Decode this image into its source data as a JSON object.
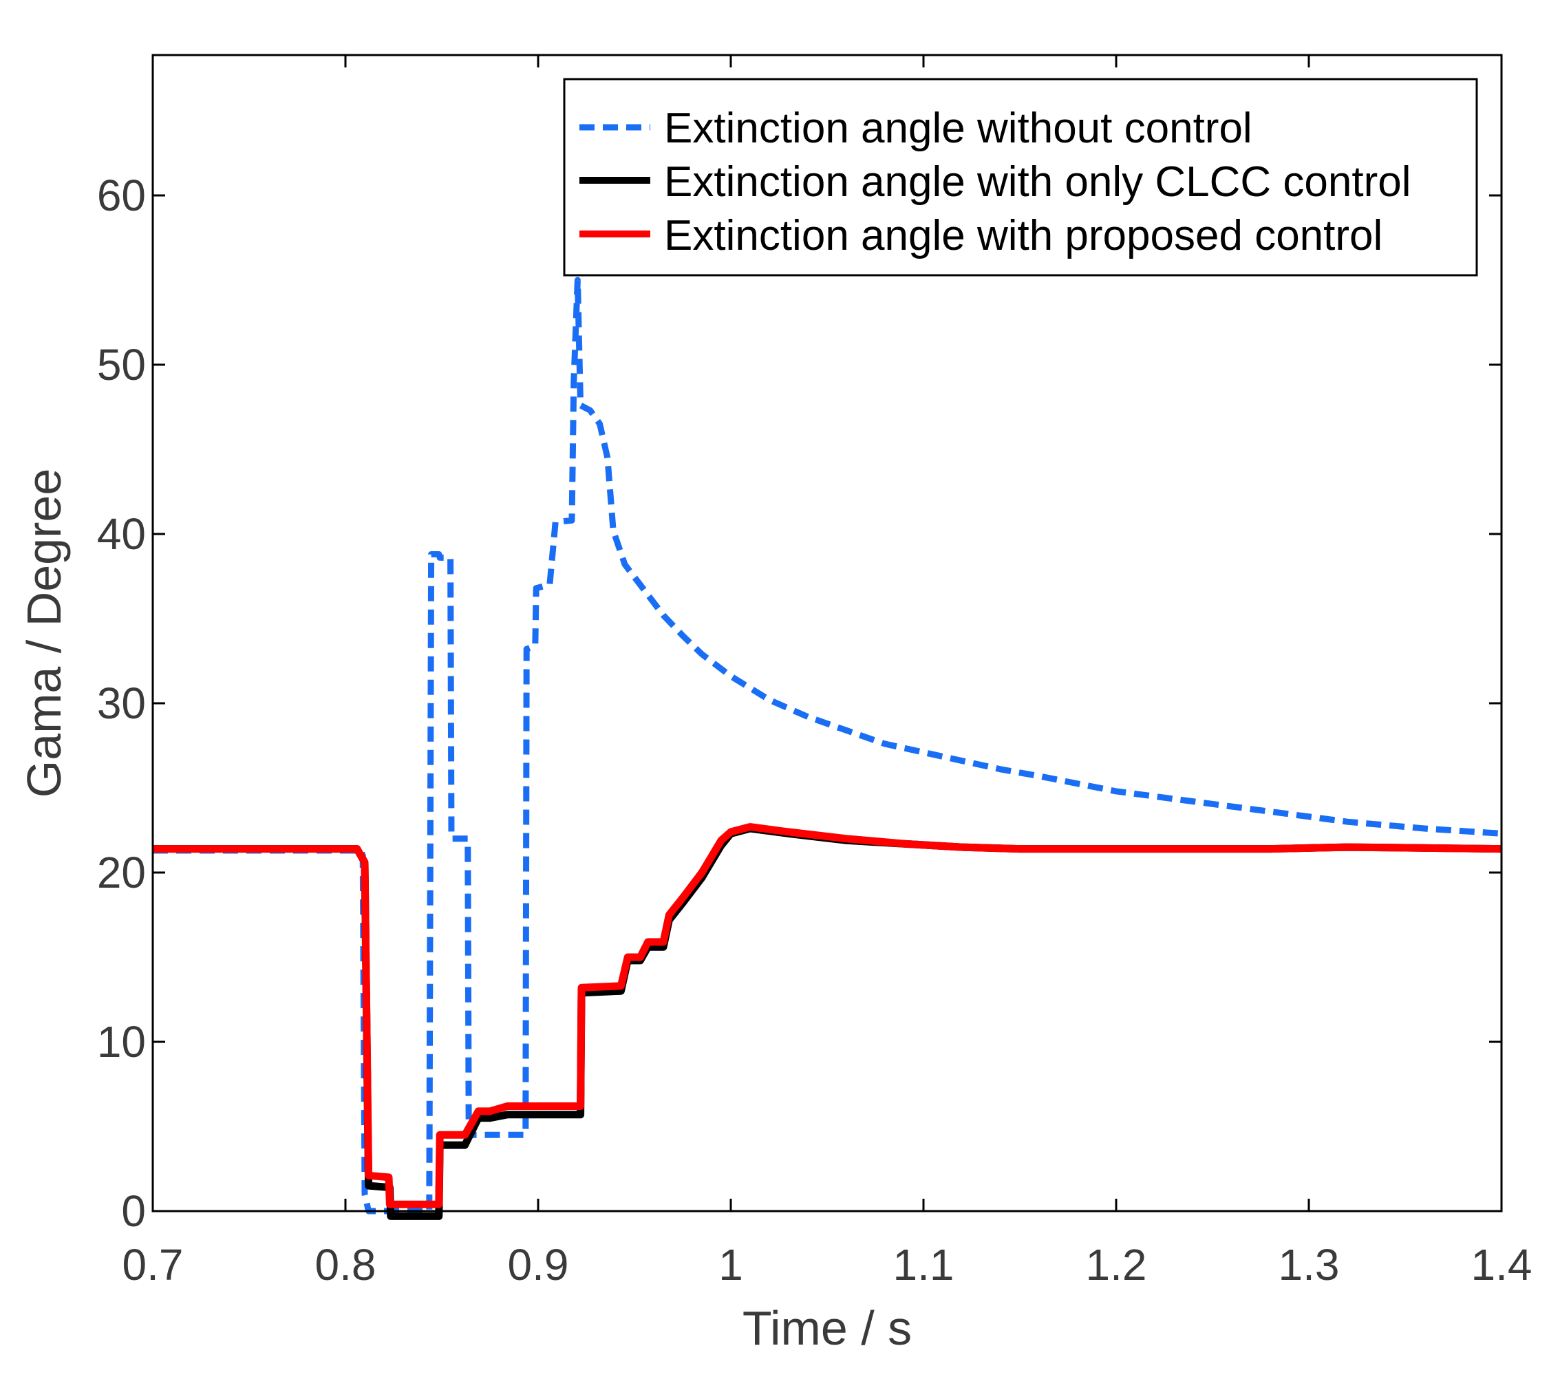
{
  "chart_data": {
    "type": "line",
    "title": "",
    "xlabel": "Time / s",
    "ylabel": "Gama / Degree",
    "xlim": [
      0.7,
      1.4
    ],
    "ylim": [
      0,
      70
    ],
    "xticks": [
      0.7,
      0.8,
      0.9,
      1.0,
      1.1,
      1.2,
      1.3,
      1.4
    ],
    "xtick_labels": [
      "0.7",
      "0.8",
      "0.9",
      "1",
      "1.1",
      "1.2",
      "1.3",
      "1.4"
    ],
    "yticks": [
      0,
      10,
      20,
      30,
      40,
      50,
      60
    ],
    "ytick_labels": [
      "0",
      "10",
      "20",
      "30",
      "40",
      "50",
      "60"
    ],
    "grid": false,
    "legend_position": "top-right",
    "series": [
      {
        "name": "Extinction angle without control",
        "color": "#1a6ef5",
        "style": "dashed",
        "points": [
          [
            0.7,
            21.3
          ],
          [
            0.808,
            21.3
          ],
          [
            0.809,
            21.0
          ],
          [
            0.81,
            1.0
          ],
          [
            0.812,
            0.0
          ],
          [
            0.8435,
            0.0
          ],
          [
            0.8445,
            38.8
          ],
          [
            0.8485,
            38.8
          ],
          [
            0.849,
            38.6
          ],
          [
            0.8545,
            38.6
          ],
          [
            0.855,
            22.0
          ],
          [
            0.8635,
            22.0
          ],
          [
            0.864,
            4.5
          ],
          [
            0.8935,
            4.5
          ],
          [
            0.894,
            33.2
          ],
          [
            0.8985,
            33.4
          ],
          [
            0.899,
            36.8
          ],
          [
            0.906,
            37.0
          ],
          [
            0.909,
            40.7
          ],
          [
            0.9175,
            40.8
          ],
          [
            0.9185,
            49.0
          ],
          [
            0.9205,
            55.0
          ],
          [
            0.922,
            47.6
          ],
          [
            0.927,
            47.3
          ],
          [
            0.932,
            46.5
          ],
          [
            0.936,
            44.5
          ],
          [
            0.939,
            40.2
          ],
          [
            0.945,
            38.2
          ],
          [
            0.955,
            36.7
          ],
          [
            0.965,
            35.2
          ],
          [
            0.975,
            34.0
          ],
          [
            0.985,
            32.9
          ],
          [
            1.0,
            31.6
          ],
          [
            1.02,
            30.2
          ],
          [
            1.04,
            29.2
          ],
          [
            1.06,
            28.4
          ],
          [
            1.08,
            27.6
          ],
          [
            1.1,
            27.1
          ],
          [
            1.12,
            26.6
          ],
          [
            1.14,
            26.1
          ],
          [
            1.16,
            25.7
          ],
          [
            1.2,
            24.8
          ],
          [
            1.24,
            24.2
          ],
          [
            1.28,
            23.6
          ],
          [
            1.32,
            23.0
          ],
          [
            1.36,
            22.6
          ],
          [
            1.4,
            22.3
          ]
        ]
      },
      {
        "name": "Extinction angle with only CLCC control",
        "color": "#000000",
        "style": "solid",
        "points": [
          [
            0.7,
            21.4
          ],
          [
            0.806,
            21.4
          ],
          [
            0.81,
            20.6
          ],
          [
            0.812,
            1.5
          ],
          [
            0.823,
            1.4
          ],
          [
            0.8235,
            -0.3
          ],
          [
            0.8485,
            -0.3
          ],
          [
            0.849,
            3.9
          ],
          [
            0.862,
            3.9
          ],
          [
            0.869,
            5.5
          ],
          [
            0.875,
            5.5
          ],
          [
            0.884,
            5.7
          ],
          [
            0.922,
            5.7
          ],
          [
            0.9225,
            12.9
          ],
          [
            0.943,
            13.0
          ],
          [
            0.9465,
            14.8
          ],
          [
            0.953,
            14.8
          ],
          [
            0.957,
            15.6
          ],
          [
            0.965,
            15.6
          ],
          [
            0.968,
            17.2
          ],
          [
            0.975,
            18.2
          ],
          [
            0.985,
            19.7
          ],
          [
            0.995,
            21.6
          ],
          [
            1.0,
            22.3
          ],
          [
            1.01,
            22.6
          ],
          [
            1.03,
            22.3
          ],
          [
            1.06,
            21.9
          ],
          [
            1.09,
            21.7
          ],
          [
            1.12,
            21.5
          ],
          [
            1.15,
            21.4
          ],
          [
            1.2,
            21.4
          ],
          [
            1.28,
            21.4
          ],
          [
            1.32,
            21.5
          ],
          [
            1.4,
            21.4
          ]
        ]
      },
      {
        "name": "Extinction angle with proposed control",
        "color": "#ff0000",
        "style": "solid",
        "points": [
          [
            0.7,
            21.4
          ],
          [
            0.806,
            21.4
          ],
          [
            0.81,
            20.6
          ],
          [
            0.812,
            2.1
          ],
          [
            0.8225,
            2.0
          ],
          [
            0.823,
            0.4
          ],
          [
            0.8485,
            0.4
          ],
          [
            0.849,
            4.5
          ],
          [
            0.862,
            4.5
          ],
          [
            0.869,
            5.9
          ],
          [
            0.875,
            5.9
          ],
          [
            0.884,
            6.2
          ],
          [
            0.922,
            6.2
          ],
          [
            0.9225,
            13.2
          ],
          [
            0.943,
            13.3
          ],
          [
            0.9465,
            15.0
          ],
          [
            0.953,
            15.0
          ],
          [
            0.957,
            15.9
          ],
          [
            0.965,
            15.9
          ],
          [
            0.968,
            17.5
          ],
          [
            0.975,
            18.5
          ],
          [
            0.985,
            20.0
          ],
          [
            0.995,
            21.9
          ],
          [
            1.0,
            22.4
          ],
          [
            1.01,
            22.7
          ],
          [
            1.03,
            22.4
          ],
          [
            1.06,
            22.0
          ],
          [
            1.09,
            21.7
          ],
          [
            1.12,
            21.5
          ],
          [
            1.15,
            21.4
          ],
          [
            1.2,
            21.4
          ],
          [
            1.28,
            21.4
          ],
          [
            1.32,
            21.5
          ],
          [
            1.4,
            21.4
          ]
        ]
      }
    ]
  }
}
